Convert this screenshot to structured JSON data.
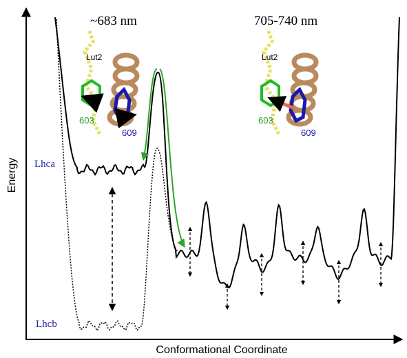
{
  "labels": {
    "left_wavelength": "~683 nm",
    "right_wavelength": "705-740 nm",
    "lhca": "Lhca",
    "lhcb": "Lhcb"
  },
  "axes": {
    "y": "Energy",
    "x": "Conformational Coordinate"
  },
  "insets": [
    {
      "lut": "Lut2",
      "chl_green": "603",
      "chl_blue": "609"
    },
    {
      "lut": "Lut2",
      "chl_green": "603",
      "chl_blue": "609"
    }
  ]
}
